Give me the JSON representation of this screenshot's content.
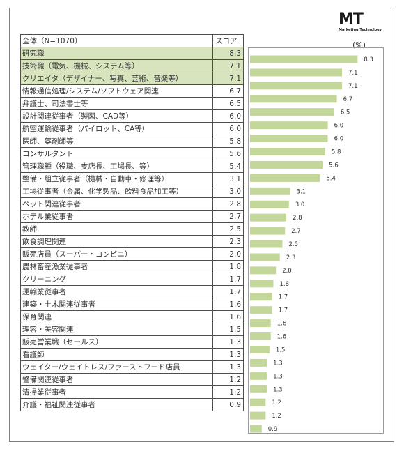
{
  "logo": {
    "mark": "MT",
    "subtitle": "Marketing Technology"
  },
  "unit_label": "(%)",
  "table": {
    "header_name": "全体（N=1070）",
    "header_score": "スコア",
    "rows": [
      {
        "name": "研究職",
        "score": "8.3",
        "highlight": true
      },
      {
        "name": "技術職（電気、機械、システム等）",
        "score": "7.1",
        "highlight": true
      },
      {
        "name": "クリエイタ（デザイナー、写真、芸術、音楽等）",
        "score": "7.1",
        "highlight": true
      },
      {
        "name": "情報通信処理/システム/ソフトウェア関連",
        "score": "6.7",
        "highlight": false
      },
      {
        "name": "弁護士、司法書士等",
        "score": "6.5",
        "highlight": false
      },
      {
        "name": "設計関連従事者（製図、CAD等）",
        "score": "6.0",
        "highlight": false
      },
      {
        "name": "航空運輸従事者（パイロット、CA等）",
        "score": "6.0",
        "highlight": false
      },
      {
        "name": "医師、薬剤師等",
        "score": "5.8",
        "highlight": false
      },
      {
        "name": "コンサルタント",
        "score": "5.6",
        "highlight": false
      },
      {
        "name": "管理職種（役職、支店長、工場長、等）",
        "score": "5.4",
        "highlight": false
      },
      {
        "name": "整備・組立従事者（機械・自動車・修理等）",
        "score": "3.1",
        "highlight": false
      },
      {
        "name": "工場従事者（金属、化学製品、飲料食品加工等）",
        "score": "3.0",
        "highlight": false
      },
      {
        "name": "ペット関連従事者",
        "score": "2.8",
        "highlight": false
      },
      {
        "name": "ホテル業従事者",
        "score": "2.7",
        "highlight": false
      },
      {
        "name": "教師",
        "score": "2.5",
        "highlight": false
      },
      {
        "name": "飲食調理関連",
        "score": "2.3",
        "highlight": false
      },
      {
        "name": "販売店員（スーパー・コンビニ）",
        "score": "2.0",
        "highlight": false
      },
      {
        "name": "農林畜産漁業従事者",
        "score": "1.8",
        "highlight": false
      },
      {
        "name": "クリーニング",
        "score": "1.7",
        "highlight": false
      },
      {
        "name": "運輸業従事者",
        "score": "1.7",
        "highlight": false
      },
      {
        "name": "建築・土木関連従事者",
        "score": "1.6",
        "highlight": false
      },
      {
        "name": "保育関連",
        "score": "1.6",
        "highlight": false
      },
      {
        "name": "理容・美容関連",
        "score": "1.5",
        "highlight": false
      },
      {
        "name": "販売営業職（セールス）",
        "score": "1.3",
        "highlight": false
      },
      {
        "name": "看護師",
        "score": "1.3",
        "highlight": false
      },
      {
        "name": "ウェイター/ウェイトレス/ファーストフード店員",
        "score": "1.3",
        "highlight": false
      },
      {
        "name": "警備関連従事者",
        "score": "1.2",
        "highlight": false
      },
      {
        "name": "清掃業従事者",
        "score": "1.2",
        "highlight": false
      },
      {
        "name": "介護・福祉関連従事者",
        "score": "0.9",
        "highlight": false
      }
    ]
  },
  "colors": {
    "bar": "#c4d79b",
    "highlight": "#d7e4bd",
    "border": "#4d4d4d"
  },
  "chart_data": {
    "type": "bar",
    "orientation": "horizontal",
    "unit": "(%)",
    "categories": [
      "研究職",
      "技術職（電気、機械、システム等）",
      "クリエイタ（デザイナー、写真、芸術、音楽等）",
      "情報通信処理/システム/ソフトウェア関連",
      "弁護士、司法書士等",
      "設計関連従事者（製図、CAD等）",
      "航空運輸従事者（パイロット、CA等）",
      "医師、薬剤師等",
      "コンサルタント",
      "管理職種（役職、支店長、工場長、等）",
      "整備・組立従事者（機械・自動車・修理等）",
      "工場従事者（金属、化学製品、飲料食品加工等）",
      "ペット関連従事者",
      "ホテル業従事者",
      "教師",
      "飲食調理関連",
      "販売店員（スーパー・コンビニ）",
      "農林畜産漁業従事者",
      "クリーニング",
      "運輸業従事者",
      "建築・土木関連従事者",
      "保育関連",
      "理容・美容関連",
      "販売営業職（セールス）",
      "看護師",
      "ウェイター/ウェイトレス/ファーストフード店員",
      "警備関連従事者",
      "清掃業従事者",
      "介護・福祉関連従事者"
    ],
    "values": [
      8.3,
      7.1,
      7.1,
      6.7,
      6.5,
      6.0,
      6.0,
      5.8,
      5.6,
      5.4,
      3.1,
      3.0,
      2.8,
      2.7,
      2.5,
      2.3,
      2.0,
      1.8,
      1.7,
      1.7,
      1.6,
      1.6,
      1.5,
      1.3,
      1.3,
      1.3,
      1.2,
      1.2,
      0.9
    ],
    "labels": [
      "8.3",
      "7.1",
      "7.1",
      "6.7",
      "6.5",
      "6.0",
      "6.0",
      "5.8",
      "5.6",
      "5.4",
      "3.1",
      "3.0",
      "2.8",
      "2.7",
      "2.5",
      "2.3",
      "2.0",
      "1.8",
      "1.7",
      "1.7",
      "1.6",
      "1.6",
      "1.5",
      "1.3",
      "1.3",
      "1.3",
      "1.2",
      "1.2",
      "0.9"
    ],
    "xlim": [
      0,
      10
    ],
    "grid": false,
    "legend": "none"
  }
}
